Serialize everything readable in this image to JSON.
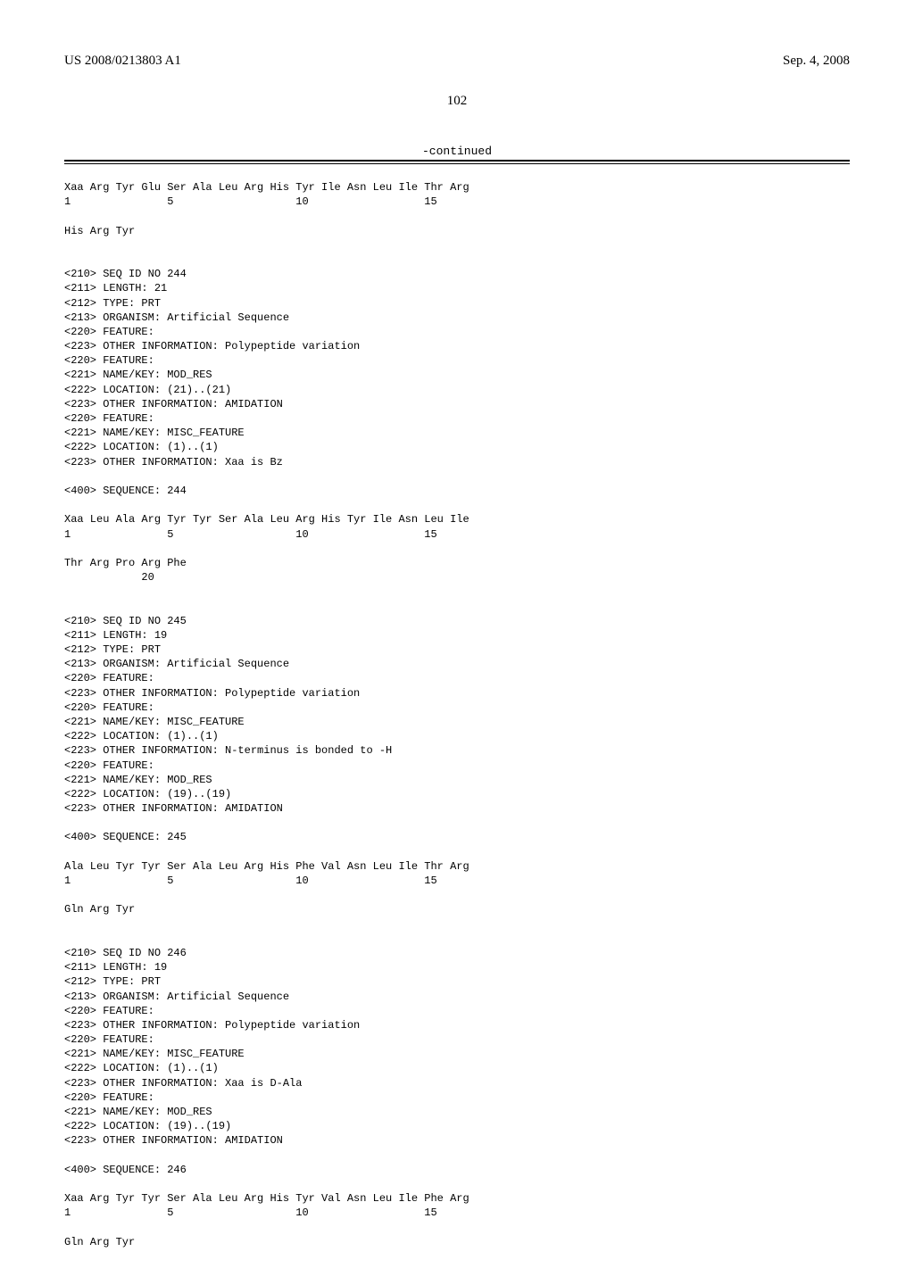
{
  "header": {
    "pub_number": "US 2008/0213803 A1",
    "pub_date": "Sep. 4, 2008"
  },
  "page_number": "102",
  "continued_label": "-continued",
  "listing_text": "Xaa Arg Tyr Glu Ser Ala Leu Arg His Tyr Ile Asn Leu Ile Thr Arg\n1               5                   10                  15\n\nHis Arg Tyr\n\n\n<210> SEQ ID NO 244\n<211> LENGTH: 21\n<212> TYPE: PRT\n<213> ORGANISM: Artificial Sequence\n<220> FEATURE:\n<223> OTHER INFORMATION: Polypeptide variation\n<220> FEATURE:\n<221> NAME/KEY: MOD_RES\n<222> LOCATION: (21)..(21)\n<223> OTHER INFORMATION: AMIDATION\n<220> FEATURE:\n<221> NAME/KEY: MISC_FEATURE\n<222> LOCATION: (1)..(1)\n<223> OTHER INFORMATION: Xaa is Bz\n\n<400> SEQUENCE: 244\n\nXaa Leu Ala Arg Tyr Tyr Ser Ala Leu Arg His Tyr Ile Asn Leu Ile\n1               5                   10                  15\n\nThr Arg Pro Arg Phe\n            20\n\n\n<210> SEQ ID NO 245\n<211> LENGTH: 19\n<212> TYPE: PRT\n<213> ORGANISM: Artificial Sequence\n<220> FEATURE:\n<223> OTHER INFORMATION: Polypeptide variation\n<220> FEATURE:\n<221> NAME/KEY: MISC_FEATURE\n<222> LOCATION: (1)..(1)\n<223> OTHER INFORMATION: N-terminus is bonded to -H\n<220> FEATURE:\n<221> NAME/KEY: MOD_RES\n<222> LOCATION: (19)..(19)\n<223> OTHER INFORMATION: AMIDATION\n\n<400> SEQUENCE: 245\n\nAla Leu Tyr Tyr Ser Ala Leu Arg His Phe Val Asn Leu Ile Thr Arg\n1               5                   10                  15\n\nGln Arg Tyr\n\n\n<210> SEQ ID NO 246\n<211> LENGTH: 19\n<212> TYPE: PRT\n<213> ORGANISM: Artificial Sequence\n<220> FEATURE:\n<223> OTHER INFORMATION: Polypeptide variation\n<220> FEATURE:\n<221> NAME/KEY: MISC_FEATURE\n<222> LOCATION: (1)..(1)\n<223> OTHER INFORMATION: Xaa is D-Ala\n<220> FEATURE:\n<221> NAME/KEY: MOD_RES\n<222> LOCATION: (19)..(19)\n<223> OTHER INFORMATION: AMIDATION\n\n<400> SEQUENCE: 246\n\nXaa Arg Tyr Tyr Ser Ala Leu Arg His Tyr Val Asn Leu Ile Phe Arg\n1               5                   10                  15\n\nGln Arg Tyr"
}
